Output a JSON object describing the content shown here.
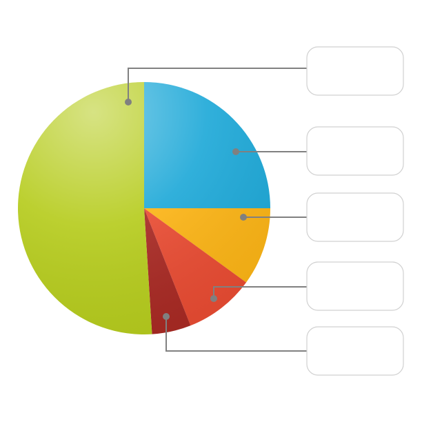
{
  "chart_data": {
    "type": "pie",
    "categories": [
      null,
      null,
      null,
      null,
      null
    ],
    "values": [
      25,
      10,
      9,
      5,
      51
    ],
    "colors": [
      "#1fa9d8",
      "#fbb416",
      "#e84c33",
      "#a82a24",
      "#b6cc1e"
    ]
  }
}
